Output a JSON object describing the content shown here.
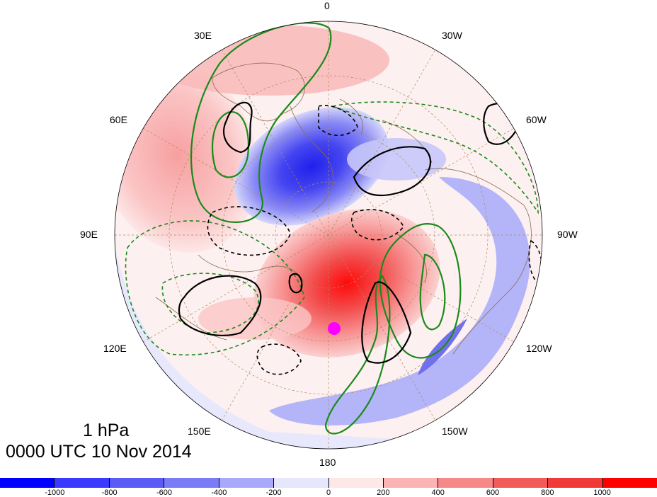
{
  "map": {
    "level_label": "1 hPa",
    "time_label": "0000 UTC 10 Nov 2014",
    "longitude_labels": [
      "0",
      "30W",
      "60W",
      "90W",
      "120W",
      "150W",
      "180",
      "150E",
      "120E",
      "90E",
      "60E",
      "30E"
    ],
    "projection": "north-polar-stereographic",
    "marker_color": "#ff00ff"
  },
  "colorbar": {
    "colors": [
      "#0000ff",
      "#3a3aff",
      "#5a5af5",
      "#7b7bf5",
      "#a9a9fb",
      "#e6e6fd",
      "#fde7e7",
      "#fbb4b4",
      "#f78888",
      "#f35a5a",
      "#f03a3a",
      "#ff0000"
    ],
    "ticks": [
      "-1000",
      "-800",
      "-600",
      "-400",
      "-200",
      "0",
      "200",
      "400",
      "600",
      "800",
      "1000"
    ]
  },
  "legend_colors": {
    "contour_black": "#000000",
    "contour_green": "#1a8a1a",
    "coastline": "#8b6f4e"
  }
}
